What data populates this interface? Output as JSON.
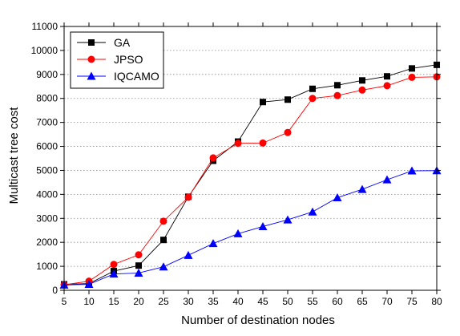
{
  "chart_data": {
    "type": "line",
    "title": "",
    "xlabel": "Number of destination nodes",
    "ylabel": "Multicast tree cost",
    "x": [
      5,
      10,
      15,
      20,
      25,
      30,
      35,
      40,
      45,
      50,
      55,
      60,
      65,
      70,
      75,
      80
    ],
    "xlim": [
      5,
      80
    ],
    "ylim": [
      0,
      11000
    ],
    "xticks": [
      5,
      10,
      15,
      20,
      25,
      30,
      35,
      40,
      45,
      50,
      55,
      60,
      65,
      70,
      75,
      80
    ],
    "yticks": [
      0,
      1000,
      2000,
      3000,
      4000,
      5000,
      6000,
      7000,
      8000,
      9000,
      10000,
      11000
    ],
    "grid": "horizontal dotted",
    "legend_position": "top-left",
    "series": [
      {
        "name": "GA",
        "color": "#000000",
        "marker": "square",
        "values": [
          250,
          280,
          800,
          1030,
          2100,
          3900,
          5400,
          6200,
          7850,
          7950,
          8400,
          8550,
          8750,
          8920,
          9250,
          9400
        ]
      },
      {
        "name": "JPSO",
        "color": "#ff0000",
        "marker": "circle",
        "values": [
          230,
          380,
          1080,
          1480,
          2880,
          3880,
          5520,
          6130,
          6140,
          6580,
          8000,
          8120,
          8350,
          8530,
          8880,
          8900
        ]
      },
      {
        "name": "IQCAMO",
        "color": "#0000ff",
        "marker": "triangle",
        "values": [
          220,
          250,
          680,
          720,
          980,
          1460,
          1950,
          2360,
          2660,
          2940,
          3270,
          3860,
          4210,
          4610,
          4980,
          4990
        ]
      }
    ]
  }
}
